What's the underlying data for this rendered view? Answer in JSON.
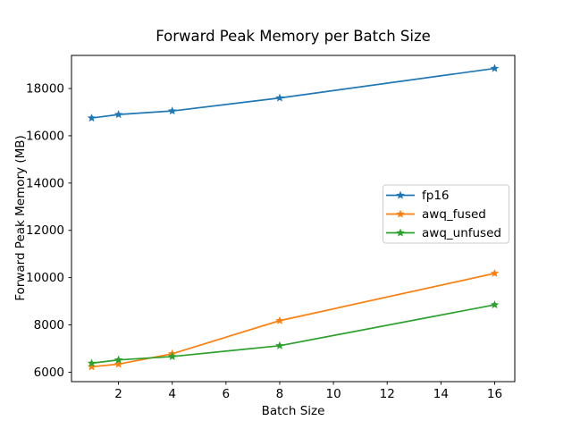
{
  "chart_data": {
    "type": "line",
    "title": "Forward Peak Memory per Batch Size",
    "xlabel": "Batch Size",
    "ylabel": "Forward Peak Memory (MB)",
    "x": [
      1,
      2,
      4,
      8,
      16
    ],
    "series": [
      {
        "name": "fp16",
        "color": "#1f77b4",
        "values": [
          16750,
          16900,
          17050,
          17600,
          18850
        ]
      },
      {
        "name": "awq_fused",
        "color": "#ff7f0e",
        "values": [
          6230,
          6340,
          6780,
          8180,
          10180
        ]
      },
      {
        "name": "awq_unfused",
        "color": "#2ca02c",
        "values": [
          6380,
          6520,
          6660,
          7120,
          8850
        ]
      }
    ],
    "xticks": [
      2,
      4,
      6,
      8,
      10,
      12,
      14,
      16
    ],
    "yticks": [
      6000,
      8000,
      10000,
      12000,
      14000,
      16000,
      18000
    ],
    "xlim": [
      0.25,
      16.75
    ],
    "ylim": [
      5600,
      19400
    ],
    "marker": "star",
    "line_width": 1.7,
    "legend_position": "center right",
    "grid": false,
    "background_color": "#ffffff",
    "frame_color": "#000000",
    "legend_border_color": "#cccccc"
  }
}
